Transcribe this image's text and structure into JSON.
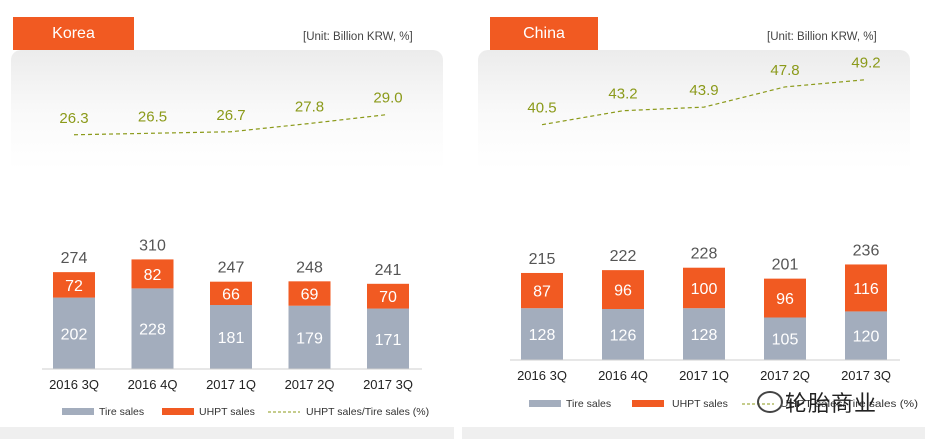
{
  "colors": {
    "tire": "#a3adbd",
    "uhpt": "#f15a22",
    "ratio": "#8b9a1a",
    "total_text": "#555555"
  },
  "chart_data": [
    {
      "type": "bar",
      "panel": "korea",
      "title": "Korea",
      "unit": "[Unit: Billion KRW, %]",
      "categories": [
        "2016 3Q",
        "2016 4Q",
        "2017 1Q",
        "2017 2Q",
        "2017 3Q"
      ],
      "series": [
        {
          "name": "Tire sales",
          "values": [
            202,
            228,
            181,
            179,
            171
          ]
        },
        {
          "name": "UHPT sales",
          "values": [
            72,
            82,
            66,
            69,
            70
          ]
        }
      ],
      "totals": [
        274,
        310,
        247,
        248,
        241
      ],
      "line": {
        "name": "UHPT sales/Tire sales (%)",
        "values": [
          "26.3",
          "26.5",
          "26.7",
          "27.8",
          "29.0"
        ],
        "ylim": [
          22,
          32
        ]
      },
      "ylim": [
        0,
        320
      ]
    },
    {
      "type": "bar",
      "panel": "china",
      "title": "China",
      "unit": "[Unit: Billion KRW, %]",
      "categories": [
        "2016 3Q",
        "2016 4Q",
        "2017 1Q",
        "2017 2Q",
        "2017 3Q"
      ],
      "series": [
        {
          "name": "Tire sales",
          "values": [
            128,
            126,
            128,
            105,
            120
          ]
        },
        {
          "name": "UHPT sales",
          "values": [
            87,
            96,
            100,
            96,
            116
          ]
        }
      ],
      "totals": [
        215,
        222,
        228,
        201,
        236
      ],
      "line": {
        "name": "UHPT sales/Tire sales (%)",
        "values": [
          "40.5",
          "43.2",
          "43.9",
          "47.8",
          "49.2"
        ],
        "ylim": [
          36,
          53
        ]
      },
      "ylim": [
        0,
        320
      ]
    }
  ],
  "legend": {
    "tire": "Tire sales",
    "uhpt": "UHPT sales",
    "ratio": "UHPT sales/Tire sales (%)",
    "ratio_truncated": "UHPT sales/Tire sales (%)"
  },
  "watermark": "轮胎商业"
}
